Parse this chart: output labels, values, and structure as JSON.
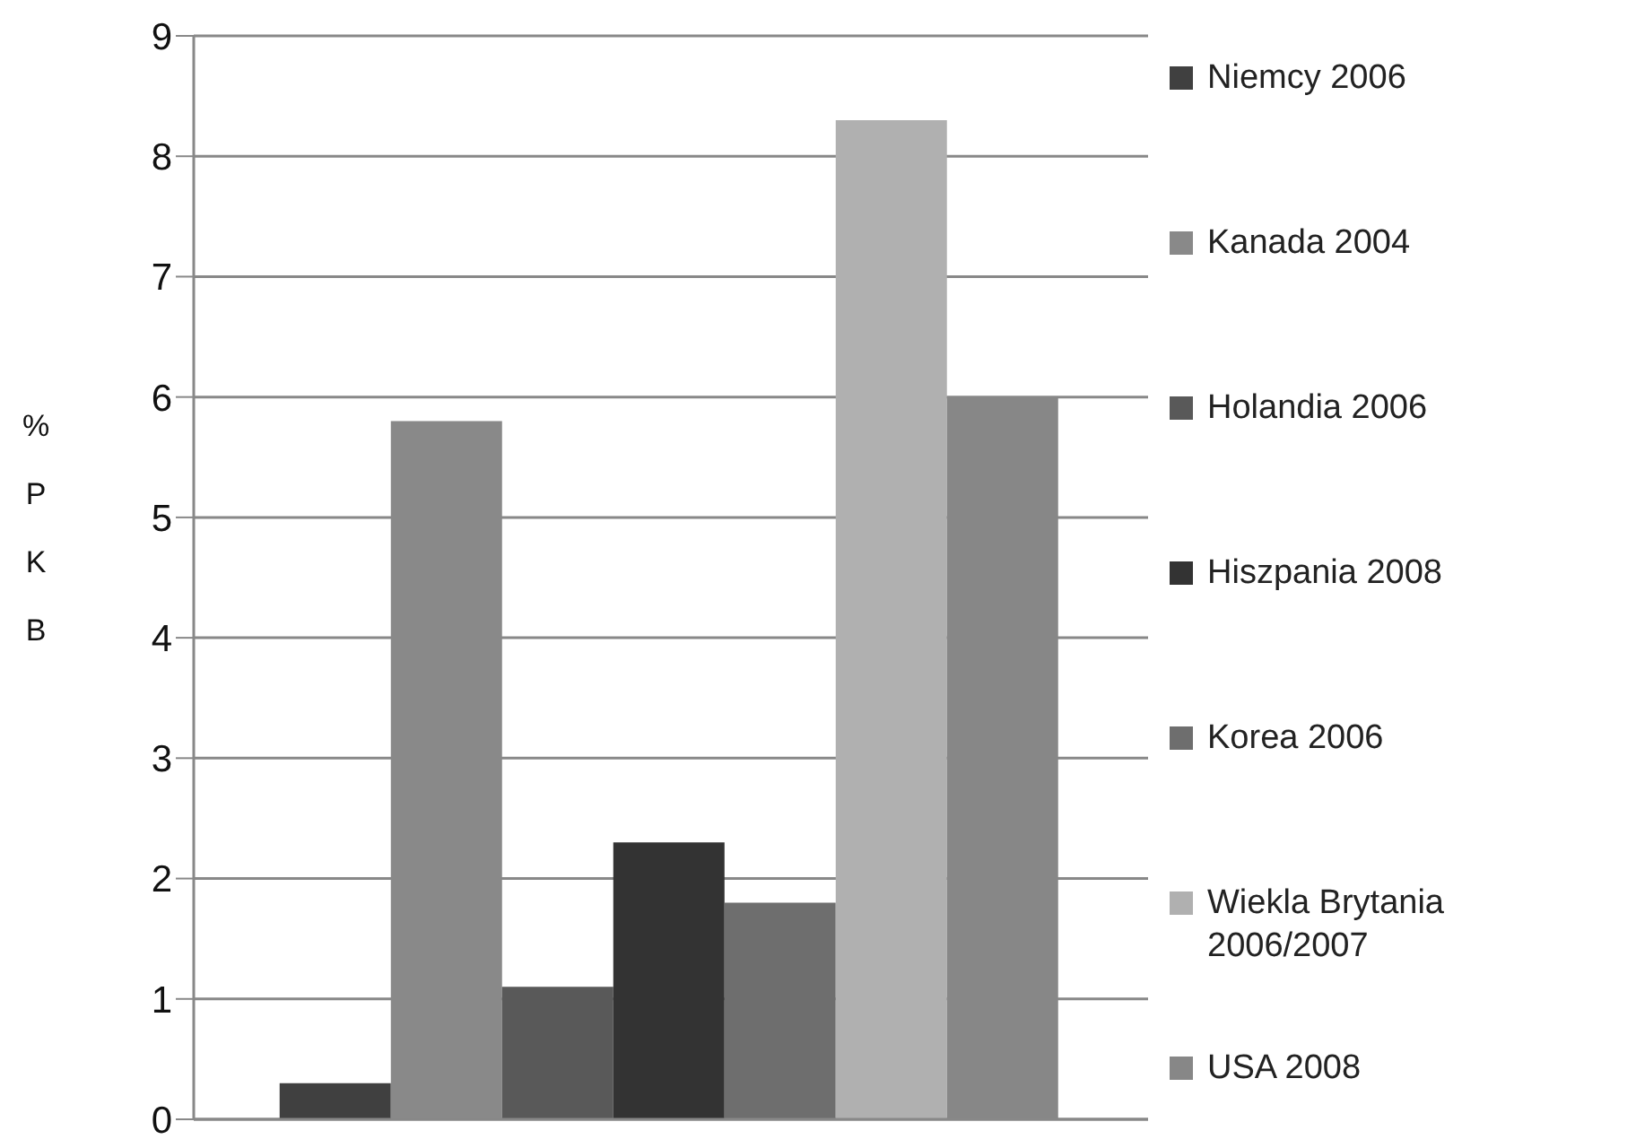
{
  "chart_data": {
    "type": "bar",
    "ylabel": "% PKB",
    "categories": [
      null
    ],
    "series": [
      {
        "name": "Niemcy 2006",
        "color": "#404040",
        "values": [
          0.3
        ]
      },
      {
        "name": "Kanada 2004",
        "color": "#898989",
        "values": [
          5.8
        ]
      },
      {
        "name": "Holandia 2006",
        "color": "#595959",
        "values": [
          1.1
        ]
      },
      {
        "name": "Hiszpania 2008",
        "color": "#333333",
        "values": [
          2.3
        ]
      },
      {
        "name": "Korea 2006",
        "color": "#6e6e6e",
        "values": [
          1.8
        ]
      },
      {
        "name": "Wiekla Brytania 2006/2007",
        "color": "#b0b0b0",
        "values": [
          8.3
        ]
      },
      {
        "name": "USA 2008",
        "color": "#878787",
        "values": [
          6.0
        ]
      }
    ],
    "ylim": [
      0,
      9
    ],
    "yticks": [
      0,
      1,
      2,
      3,
      4,
      5,
      6,
      7,
      8,
      9
    ],
    "grid": "y",
    "legend": "right"
  }
}
